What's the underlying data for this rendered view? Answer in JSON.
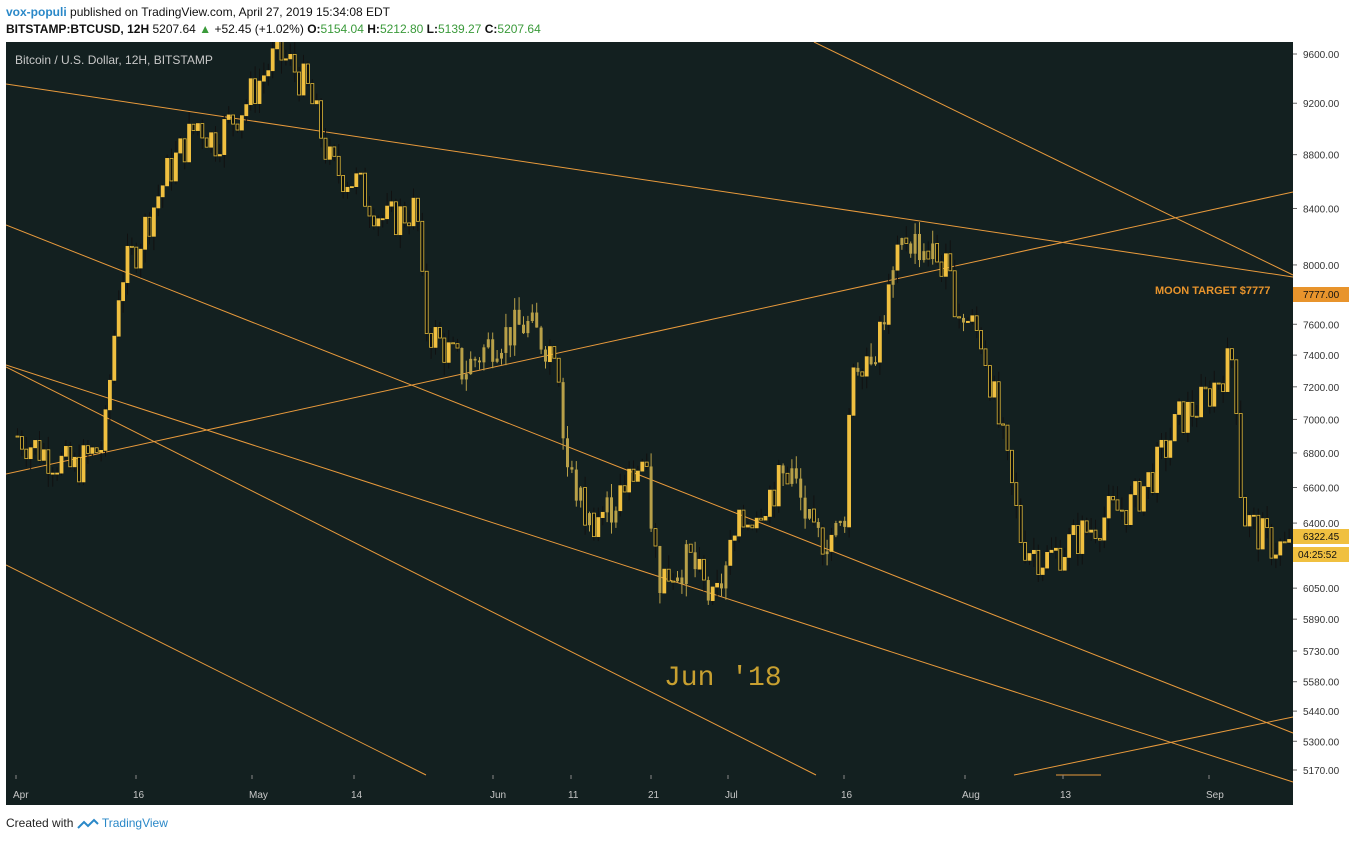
{
  "header": {
    "user": "vox-populi",
    "published": "published on TradingView.com, April 27, 2019 15:34:08 EDT",
    "symbol": "BITSTAMP:BTCUSD, 12H",
    "price": "5207.64",
    "change": "+52.45 (+1.02%)",
    "o_label": "O:",
    "o_val": "5154.04",
    "h_label": "H:",
    "h_val": "5212.80",
    "l_label": "L:",
    "l_val": "5139.27",
    "c_label": "C:",
    "c_val": "5207.64"
  },
  "footer": {
    "created": "Created with",
    "brand": "TradingView"
  },
  "colors": {
    "background": "#132020",
    "candle": "#f0c040",
    "bar": "#b8a048",
    "line": "#e89a3c",
    "text": "#c8c8c8",
    "accent": "#e8942c"
  },
  "chart_data": {
    "type": "candlestick",
    "title": "Bitcoin / U.S. Dollar, 12H, BITSTAMP",
    "y_scale": "log",
    "ylim": [
      5100,
      9750
    ],
    "y_ticks": [
      "9600.00",
      "9200.00",
      "8800.00",
      "8400.00",
      "8000.00",
      "7600.00",
      "7400.00",
      "7200.00",
      "7000.00",
      "6800.00",
      "6600.00",
      "6400.00",
      "6050.00",
      "5890.00",
      "5730.00",
      "5580.00",
      "5440.00",
      "5300.00",
      "5170.00"
    ],
    "x_ticks": [
      "Apr",
      "16",
      "May",
      "14",
      "Jun",
      "11",
      "21",
      "Jul",
      "16",
      "Aug",
      "13",
      "Sep"
    ],
    "annotation": "Jun '18",
    "target_label": "MOON TARGET $7777",
    "target_price": "7777.00",
    "last_price": "6322.45",
    "countdown": "04:25:52",
    "price_path": [
      [
        "Apr",
        6900
      ],
      [
        "Apr 8",
        6700
      ],
      [
        "Apr 12",
        6850
      ],
      [
        "Apr 14",
        7900
      ],
      [
        "Apr 16",
        8100
      ],
      [
        "Apr 20",
        8650
      ],
      [
        "Apr 24",
        9050
      ],
      [
        "Apr 26",
        8900
      ],
      [
        "Apr 30",
        9200
      ],
      [
        "May 4",
        9600
      ],
      [
        "May 6",
        9500
      ],
      [
        "May 8",
        9300
      ],
      [
        "May 11",
        8700
      ],
      [
        "May 14",
        8600
      ],
      [
        "May 18",
        8300
      ],
      [
        "May 22",
        8400
      ],
      [
        "May 23",
        7600
      ],
      [
        "May 28",
        7300
      ],
      [
        "Jun 1",
        7500
      ],
      [
        "Jun 5",
        7600
      ],
      [
        "Jun 9",
        7400
      ],
      [
        "Jun 10",
        6750
      ],
      [
        "Jun 13",
        6400
      ],
      [
        "Jun 16",
        6500
      ],
      [
        "Jun 20",
        6750
      ],
      [
        "Jun 22",
        6100
      ],
      [
        "Jun 26",
        6200
      ],
      [
        "Jun 29",
        5950
      ],
      [
        "Jul 2",
        6350
      ],
      [
        "Jul 6",
        6550
      ],
      [
        "Jul 9",
        6700
      ],
      [
        "Jul 12",
        6300
      ],
      [
        "Jul 15",
        6350
      ],
      [
        "Jul 16",
        6400
      ],
      [
        "Jul 17",
        7350
      ],
      [
        "Jul 20",
        7450
      ],
      [
        "Jul 24",
        8200
      ],
      [
        "Jul 27",
        8100
      ],
      [
        "Jul 29",
        8000
      ],
      [
        "Jul 31",
        7700
      ],
      [
        "Aug 3",
        7500
      ],
      [
        "Aug 5",
        7000
      ],
      [
        "Aug 8",
        6300
      ],
      [
        "Aug 11",
        6200
      ],
      [
        "Aug 13",
        6250
      ],
      [
        "Aug 16",
        6350
      ],
      [
        "Aug 19",
        6450
      ],
      [
        "Aug 22",
        6500
      ],
      [
        "Aug 25",
        6700
      ],
      [
        "Aug 28",
        7000
      ],
      [
        "Aug 31",
        7100
      ],
      [
        "Sep 4",
        7400
      ],
      [
        "Sep 5",
        6450
      ],
      [
        "Sep 8",
        6300
      ],
      [
        "Sep 11",
        6250
      ]
    ]
  }
}
